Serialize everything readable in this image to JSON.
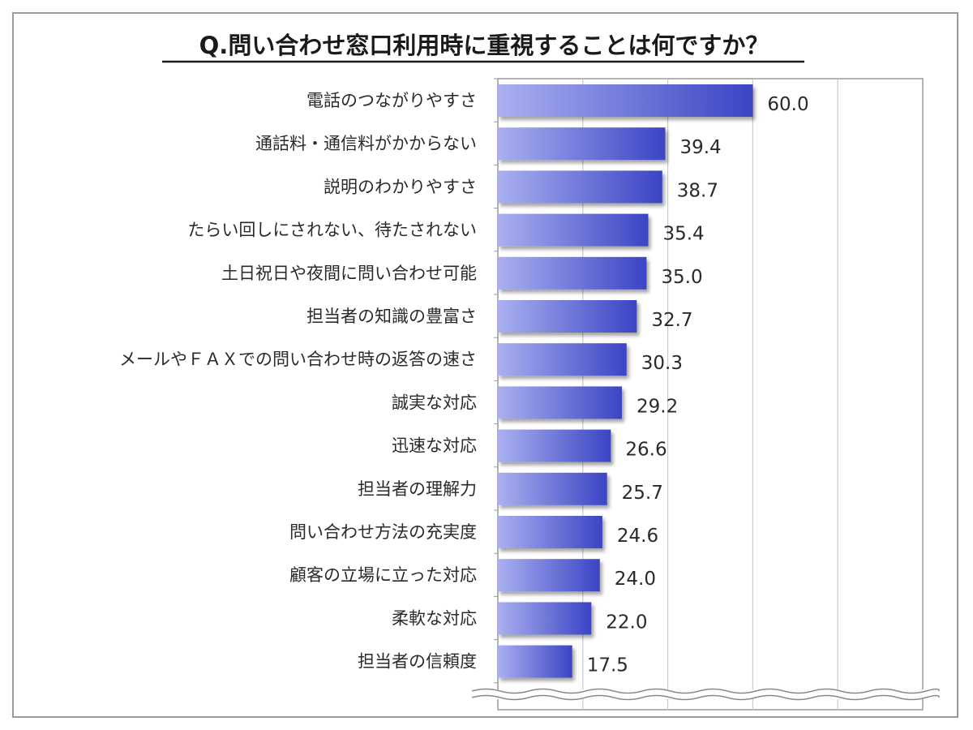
{
  "chart_data": {
    "type": "bar",
    "orientation": "horizontal",
    "title": "Q.問い合わせ窓口利用時に重視することは何ですか？",
    "categories": [
      "電話のつながりやすさ",
      "通話料・通信料がかからない",
      "説明のわかりやすさ",
      "たらい回しにされない、待たされない",
      "土日祝日や夜間に問い合わせ可能",
      "担当者の知識の豊富さ",
      "メールやＦＡＸでの問い合わせ時の返答の速さ",
      "誠実な対応",
      "迅速な対応",
      "担当者の理解力",
      "問い合わせ方法の充実度",
      "顧客の立場に立った対応",
      "柔軟な対応",
      "担当者の信頼度"
    ],
    "values": [
      60.0,
      39.4,
      38.7,
      35.4,
      35.0,
      32.7,
      30.3,
      29.2,
      26.6,
      25.7,
      24.6,
      24.0,
      22.0,
      17.5
    ],
    "value_labels": [
      "60.0",
      "39.4",
      "38.7",
      "35.4",
      "35.0",
      "32.7",
      "30.3",
      "29.2",
      "26.6",
      "25.7",
      "24.6",
      "24.0",
      "22.0",
      "17.5"
    ],
    "xlim": [
      0,
      100
    ],
    "grid": true,
    "axis_break": true,
    "colors": {
      "bar_light": "#aab0f0",
      "bar_dark": "#3b44c4",
      "grid": "#c8c8c8",
      "plot_border": "#9a9a9a"
    }
  }
}
